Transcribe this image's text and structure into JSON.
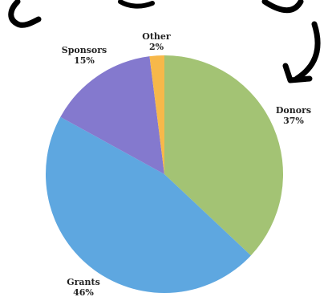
{
  "chart_data": {
    "type": "pie",
    "slices": [
      {
        "label": "Donors",
        "value": 37,
        "percent_label": "37%",
        "color": "#a3c374"
      },
      {
        "label": "Grants",
        "value": 46,
        "percent_label": "46%",
        "color": "#5ea7e0"
      },
      {
        "label": "Sponsors",
        "value": 15,
        "percent_label": "15%",
        "color": "#8479ce"
      },
      {
        "label": "Other",
        "value": 2,
        "percent_label": "2%",
        "color": "#f7b84a"
      }
    ],
    "start_angle_deg": 0,
    "direction": "clockwise"
  }
}
